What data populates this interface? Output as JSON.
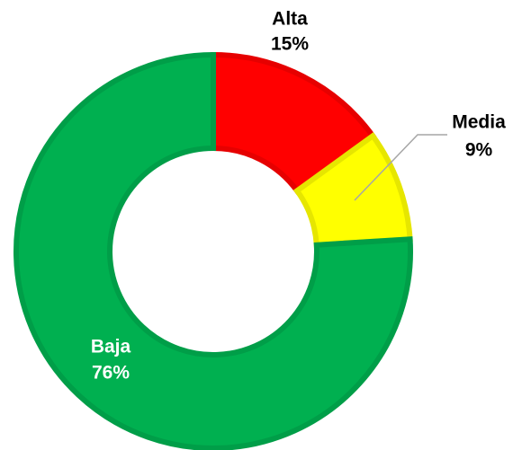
{
  "chart_data": {
    "type": "donut",
    "categories": [
      "Alta",
      "Media",
      "Baja"
    ],
    "values": [
      15,
      9,
      76
    ],
    "value_labels": [
      "15%",
      "9%",
      "76%"
    ],
    "colors": [
      "#ff0000",
      "#ffff00",
      "#00b050"
    ]
  }
}
